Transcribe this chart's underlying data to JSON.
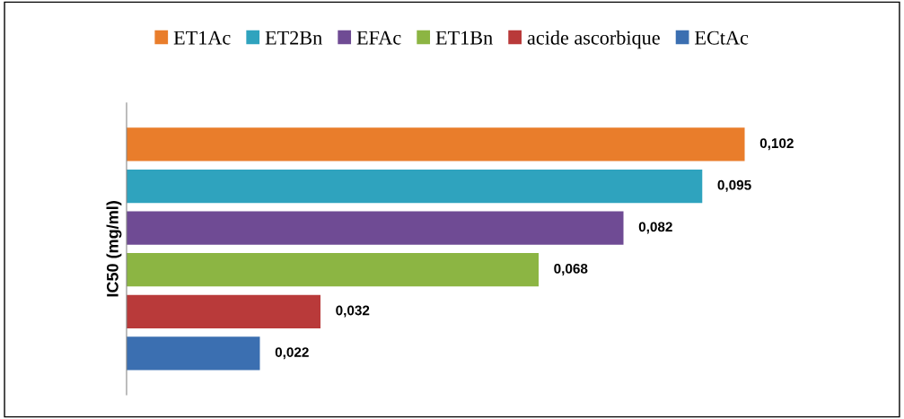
{
  "chart_data": {
    "type": "bar",
    "orientation": "horizontal",
    "ylabel": "IC50 (mg/ml)",
    "categories": [
      null
    ],
    "tick_labels": false,
    "grid": false,
    "legend": "top",
    "series": [
      {
        "name": "ET1Ac",
        "color": "#e97d2b",
        "values": [
          0.102
        ],
        "value_labels": [
          "0,102"
        ]
      },
      {
        "name": "ET2Bn",
        "color": "#2fa3be",
        "values": [
          0.095
        ],
        "value_labels": [
          "0,095"
        ]
      },
      {
        "name": "EFAc",
        "color": "#6f4b94",
        "values": [
          0.082
        ],
        "value_labels": [
          "0,082"
        ]
      },
      {
        "name": "ET1Bn",
        "color": "#8cb543",
        "values": [
          0.068
        ],
        "value_labels": [
          "0,068"
        ]
      },
      {
        "name": "acide ascorbique",
        "color": "#b93a3a",
        "values": [
          0.032
        ],
        "value_labels": [
          "0,032"
        ]
      },
      {
        "name": "ECtAc",
        "color": "#3b6fb1",
        "values": [
          0.022
        ],
        "value_labels": [
          "0,022"
        ]
      }
    ]
  }
}
